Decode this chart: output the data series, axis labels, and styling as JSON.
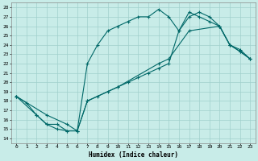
{
  "xlabel": "Humidex (Indice chaleur)",
  "bg_color": "#c8ece8",
  "grid_color": "#a0d0cc",
  "line_color": "#006868",
  "xlim": [
    -0.5,
    23.5
  ],
  "ylim": [
    13.5,
    28.5
  ],
  "xticks": [
    0,
    1,
    2,
    3,
    4,
    5,
    6,
    7,
    8,
    9,
    10,
    11,
    12,
    13,
    14,
    15,
    16,
    17,
    18,
    19,
    20,
    21,
    22,
    23
  ],
  "yticks": [
    14,
    15,
    16,
    17,
    18,
    19,
    20,
    21,
    22,
    23,
    24,
    25,
    26,
    27,
    28
  ],
  "line1_x": [
    0,
    1,
    2,
    3,
    4,
    5,
    6,
    7,
    8,
    9,
    10,
    11,
    12,
    13,
    14,
    15,
    16,
    17,
    18,
    19,
    20,
    21,
    22,
    23
  ],
  "line1_y": [
    18.5,
    17.8,
    16.5,
    15.5,
    15.0,
    14.8,
    14.8,
    22.0,
    24.0,
    25.5,
    26.0,
    26.5,
    27.0,
    27.0,
    27.8,
    27.0,
    25.5,
    27.5,
    27.0,
    26.5,
    26.0,
    24.0,
    23.3,
    22.5
  ],
  "line2_x": [
    0,
    2,
    3,
    4,
    5,
    6,
    7,
    8,
    9,
    10,
    11,
    12,
    13,
    14,
    15,
    16,
    17,
    18,
    19,
    20,
    21,
    22,
    23
  ],
  "line2_y": [
    18.5,
    16.5,
    15.5,
    15.5,
    14.8,
    14.8,
    18.0,
    18.5,
    19.0,
    19.5,
    20.0,
    20.5,
    21.0,
    21.5,
    22.0,
    25.5,
    27.0,
    27.5,
    27.0,
    26.0,
    24.0,
    23.5,
    22.5
  ],
  "line3_x": [
    0,
    3,
    5,
    6,
    7,
    10,
    14,
    15,
    17,
    20,
    21,
    22,
    23
  ],
  "line3_y": [
    18.5,
    16.5,
    15.5,
    14.8,
    18.0,
    19.5,
    22.0,
    22.5,
    25.5,
    26.0,
    24.0,
    23.3,
    22.5
  ]
}
